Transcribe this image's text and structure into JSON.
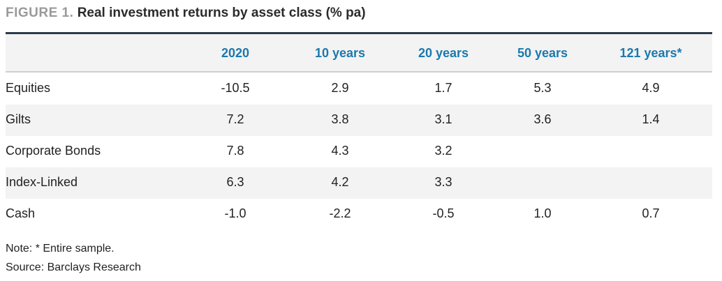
{
  "figure": {
    "label": "FIGURE 1.",
    "title": "Real investment returns by asset class (% pa)"
  },
  "table": {
    "columns": [
      "2020",
      "10 years",
      "20 years",
      "50 years",
      "121 years*"
    ],
    "rows": [
      {
        "label": "Equities",
        "values": [
          "-10.5",
          "2.9",
          "1.7",
          "5.3",
          "4.9"
        ]
      },
      {
        "label": "Gilts",
        "values": [
          "7.2",
          "3.8",
          "3.1",
          "3.6",
          "1.4"
        ]
      },
      {
        "label": "Corporate Bonds",
        "values": [
          "7.8",
          "4.3",
          "3.2",
          "",
          ""
        ]
      },
      {
        "label": "Index-Linked",
        "values": [
          "6.3",
          "4.2",
          "3.3",
          "",
          ""
        ]
      },
      {
        "label": "Cash",
        "values": [
          "-1.0",
          "-2.2",
          "-0.5",
          "1.0",
          "0.7"
        ]
      }
    ]
  },
  "notes": {
    "note": "Note: * Entire sample.",
    "source": "Source: Barclays Research"
  }
}
